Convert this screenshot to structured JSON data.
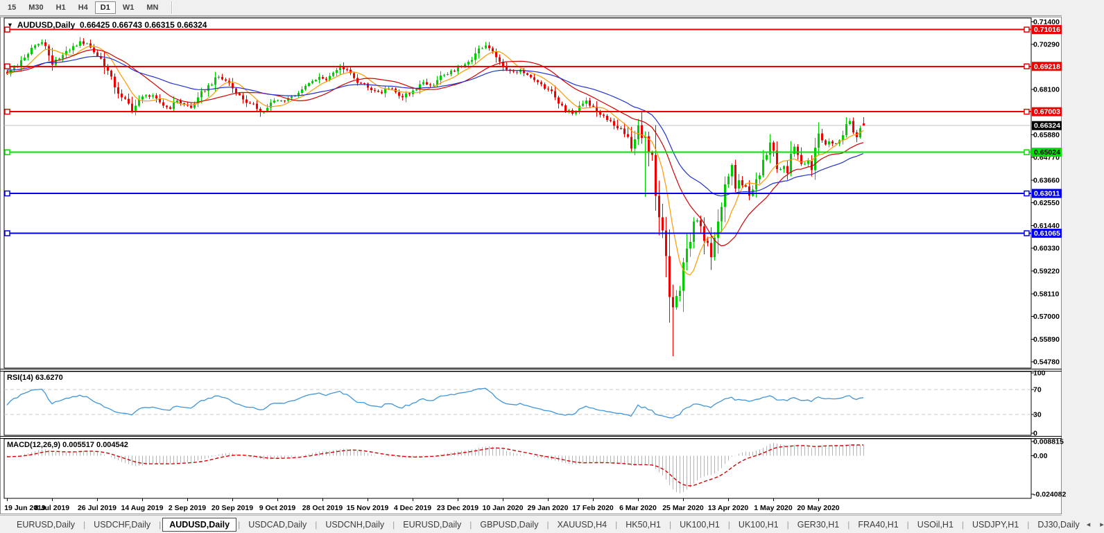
{
  "toolbar": {
    "timeframes": [
      "15",
      "M30",
      "H1",
      "H4",
      "D1",
      "W1",
      "MN"
    ],
    "active": "D1"
  },
  "chart": {
    "dropdown_icon": "▼",
    "symbol": "AUDUSD,Daily",
    "ohlc_text": "0.66425 0.66743 0.66315 0.66324"
  },
  "chart_data": {
    "type": "candlestick",
    "symbol": "AUDUSD",
    "timeframe": "Daily",
    "visible_ohlc": {
      "o": 0.66425,
      "h": 0.66743,
      "l": 0.66315,
      "c": 0.66324
    },
    "last_candle": {
      "o": 0.66425,
      "h": 0.66743,
      "l": 0.66315,
      "c": 0.66324
    },
    "candle_colors": {
      "up": "#00cc00",
      "down": "#ee0000"
    },
    "y_axis": {
      "range": [
        0.5448,
        0.7158
      ],
      "ticks": [
        "0.71400",
        "0.70290",
        "0.68100",
        "0.65880",
        "0.64770",
        "0.63660",
        "0.62550",
        "0.61440",
        "0.60330",
        "0.59220",
        "0.58110",
        "0.57000",
        "0.55890",
        "0.54780"
      ]
    },
    "x_axis": {
      "labels": [
        "19 Jun 2019",
        "8 Jul 2019",
        "26 Jul 2019",
        "14 Aug 2019",
        "2 Sep 2019",
        "20 Sep 2019",
        "9 Oct 2019",
        "28 Oct 2019",
        "15 Nov 2019",
        "4 Dec 2019",
        "23 Dec 2019",
        "10 Jan 2020",
        "29 Jan 2020",
        "17 Feb 2020",
        "6 Mar 2020",
        "25 Mar 2020",
        "13 Apr 2020",
        "1 May 2020",
        "20 May 2020"
      ],
      "candles_per_label": 13
    },
    "horizontal_lines": [
      {
        "price": 0.71016,
        "label": "0.71016",
        "color": "#ee0000",
        "text_color": "#ffffff"
      },
      {
        "price": 0.69218,
        "label": "0.69218",
        "color": "#ee0000",
        "text_color": "#ffffff"
      },
      {
        "price": 0.67003,
        "label": "0.67003",
        "color": "#ee0000",
        "text_color": "#ffffff"
      },
      {
        "price": 0.65024,
        "label": "0.65024",
        "color": "#00e000",
        "text_color": "#000000"
      },
      {
        "price": 0.63011,
        "label": "0.63011",
        "color": "#0000ee",
        "text_color": "#ffffff"
      },
      {
        "price": 0.61065,
        "label": "0.61065",
        "color": "#0000ee",
        "text_color": "#ffffff"
      }
    ],
    "current_price": {
      "value": 0.66324,
      "label": "0.66324",
      "line_color": "#c0c0c0",
      "label_bg": "#000000",
      "text_color": "#ffffff"
    },
    "moving_averages": [
      {
        "period": 8,
        "method": "sma",
        "color": "#ff9900"
      },
      {
        "period": 20,
        "method": "sma",
        "color": "#d40000"
      },
      {
        "period": 40,
        "method": "ema",
        "color": "#2233cc"
      }
    ],
    "price_path_anchors": [
      [
        0,
        0.6885
      ],
      [
        2,
        0.692
      ],
      [
        5,
        0.6965
      ],
      [
        8,
        0.7025
      ],
      [
        10,
        0.704
      ],
      [
        12,
        0.6975
      ],
      [
        13,
        0.693
      ],
      [
        15,
        0.696
      ],
      [
        18,
        0.7
      ],
      [
        21,
        0.7045
      ],
      [
        23,
        0.7035
      ],
      [
        25,
        0.699
      ],
      [
        27,
        0.696
      ],
      [
        29,
        0.69
      ],
      [
        31,
        0.682
      ],
      [
        33,
        0.677
      ],
      [
        35,
        0.674
      ],
      [
        36,
        0.67
      ],
      [
        38,
        0.676
      ],
      [
        40,
        0.678
      ],
      [
        43,
        0.6765
      ],
      [
        45,
        0.673
      ],
      [
        47,
        0.6715
      ],
      [
        49,
        0.6755
      ],
      [
        51,
        0.6735
      ],
      [
        53,
        0.672
      ],
      [
        55,
        0.677
      ],
      [
        58,
        0.683
      ],
      [
        61,
        0.687
      ],
      [
        64,
        0.684
      ],
      [
        66,
        0.679
      ],
      [
        68,
        0.676
      ],
      [
        70,
        0.674
      ],
      [
        72,
        0.6715
      ],
      [
        74,
        0.67
      ],
      [
        76,
        0.6745
      ],
      [
        79,
        0.6755
      ],
      [
        82,
        0.6775
      ],
      [
        85,
        0.681
      ],
      [
        88,
        0.685
      ],
      [
        90,
        0.687
      ],
      [
        92,
        0.6855
      ],
      [
        94,
        0.689
      ],
      [
        96,
        0.6925
      ],
      [
        98,
        0.6905
      ],
      [
        100,
        0.6865
      ],
      [
        102,
        0.684
      ],
      [
        105,
        0.6805
      ],
      [
        108,
        0.679
      ],
      [
        110,
        0.6815
      ],
      [
        112,
        0.6795
      ],
      [
        114,
        0.677
      ],
      [
        116,
        0.6785
      ],
      [
        118,
        0.681
      ],
      [
        120,
        0.6845
      ],
      [
        122,
        0.683
      ],
      [
        124,
        0.6855
      ],
      [
        126,
        0.688
      ],
      [
        128,
        0.69
      ],
      [
        131,
        0.6925
      ],
      [
        133,
        0.6945
      ],
      [
        135,
        0.6985
      ],
      [
        137,
        0.701
      ],
      [
        138,
        0.7025
      ],
      [
        140,
        0.6995
      ],
      [
        142,
        0.6945
      ],
      [
        144,
        0.6905
      ],
      [
        146,
        0.6895
      ],
      [
        148,
        0.6905
      ],
      [
        150,
        0.688
      ],
      [
        152,
        0.6855
      ],
      [
        154,
        0.6835
      ],
      [
        156,
        0.681
      ],
      [
        157,
        0.68
      ],
      [
        159,
        0.674
      ],
      [
        161,
        0.67
      ],
      [
        163,
        0.669
      ],
      [
        165,
        0.673
      ],
      [
        167,
        0.6755
      ],
      [
        169,
        0.6725
      ],
      [
        170,
        0.67
      ],
      [
        172,
        0.668
      ],
      [
        174,
        0.6655
      ],
      [
        176,
        0.662
      ],
      [
        178,
        0.659
      ],
      [
        180,
        0.652
      ],
      [
        181,
        0.6565
      ],
      [
        182,
        0.6635
      ],
      [
        184,
        0.658
      ],
      [
        185,
        0.65
      ],
      [
        186,
        0.649
      ],
      [
        187,
        0.629
      ],
      [
        188,
        0.6185
      ],
      [
        189,
        0.612
      ],
      [
        190,
        0.5995
      ],
      [
        191,
        0.5795
      ],
      [
        192,
        0.5745
      ],
      [
        193,
        0.58
      ],
      [
        194,
        0.5825
      ],
      [
        195,
        0.5965
      ],
      [
        197,
        0.6065
      ],
      [
        198,
        0.6165
      ],
      [
        199,
        0.617
      ],
      [
        200,
        0.614
      ],
      [
        201,
        0.607
      ],
      [
        202,
        0.606
      ],
      [
        203,
        0.599
      ],
      [
        204,
        0.6085
      ],
      [
        205,
        0.6165
      ],
      [
        206,
        0.6235
      ],
      [
        207,
        0.6345
      ],
      [
        208,
        0.6385
      ],
      [
        209,
        0.644
      ],
      [
        210,
        0.6325
      ],
      [
        211,
        0.6365
      ],
      [
        213,
        0.6335
      ],
      [
        214,
        0.629
      ],
      [
        215,
        0.632
      ],
      [
        216,
        0.637
      ],
      [
        217,
        0.639
      ],
      [
        218,
        0.6465
      ],
      [
        219,
        0.649
      ],
      [
        220,
        0.655
      ],
      [
        221,
        0.651
      ],
      [
        222,
        0.642
      ],
      [
        224,
        0.6435
      ],
      [
        225,
        0.64
      ],
      [
        226,
        0.6495
      ],
      [
        227,
        0.653
      ],
      [
        228,
        0.649
      ],
      [
        229,
        0.6445
      ],
      [
        231,
        0.646
      ],
      [
        232,
        0.6415
      ],
      [
        233,
        0.6525
      ],
      [
        234,
        0.6595
      ],
      [
        235,
        0.656
      ],
      [
        236,
        0.654
      ],
      [
        238,
        0.6545
      ],
      [
        240,
        0.656
      ],
      [
        241,
        0.6585
      ],
      [
        242,
        0.664
      ],
      [
        243,
        0.6655
      ],
      [
        244,
        0.66
      ],
      [
        245,
        0.6575
      ],
      [
        246,
        0.662
      ],
      [
        247,
        0.66324
      ]
    ],
    "special_wicks": [
      {
        "index": 184,
        "low": 0.6285
      },
      {
        "index": 192,
        "low": 0.5506
      }
    ],
    "indicators": {
      "rsi": {
        "label": "RSI(14) 63.6270",
        "period": 14,
        "current": 63.627,
        "levels": [
          70,
          30
        ],
        "scale": [
          0,
          100
        ],
        "scale_labels": [
          {
            "text": "100",
            "value": 100
          },
          {
            "text": "70",
            "value": 70
          },
          {
            "text": "30",
            "value": 30
          },
          {
            "text": "0",
            "value": 0
          }
        ],
        "color": "#3f95dc",
        "level_color": "#c8c8c8"
      },
      "macd": {
        "label": "MACD(12,26,9) 0.005517 0.004542",
        "fast": 12,
        "slow": 26,
        "signal_period": 9,
        "main_value": 0.005517,
        "signal_value": 0.004542,
        "scale_labels": [
          {
            "text": "0.008815",
            "value": 0.008815
          },
          {
            "text": "0.00",
            "value": 0
          },
          {
            "text": "-0.024082",
            "value": -0.024082
          }
        ],
        "scale": [
          -0.024082,
          0.008815
        ],
        "histogram_color": "#b4b4b4",
        "signal_color": "#d40000"
      }
    }
  },
  "tabbar": {
    "tabs": [
      "EURUSD,Daily",
      "USDCHF,Daily",
      "AUDUSD,Daily",
      "USDCAD,Daily",
      "USDCNH,Daily",
      "EURUSD,Daily",
      "GBPUSD,Daily",
      "XAUUSD,H4",
      "HK50,H1",
      "UK100,H1",
      "UK100,H1",
      "GER30,H1",
      "FRA40,H1",
      "USOil,H1",
      "USDJPY,H1",
      "DJ30,Daily"
    ],
    "active_index": 2,
    "scroll_left_icon": "◂",
    "scroll_right_icon": "▸"
  }
}
